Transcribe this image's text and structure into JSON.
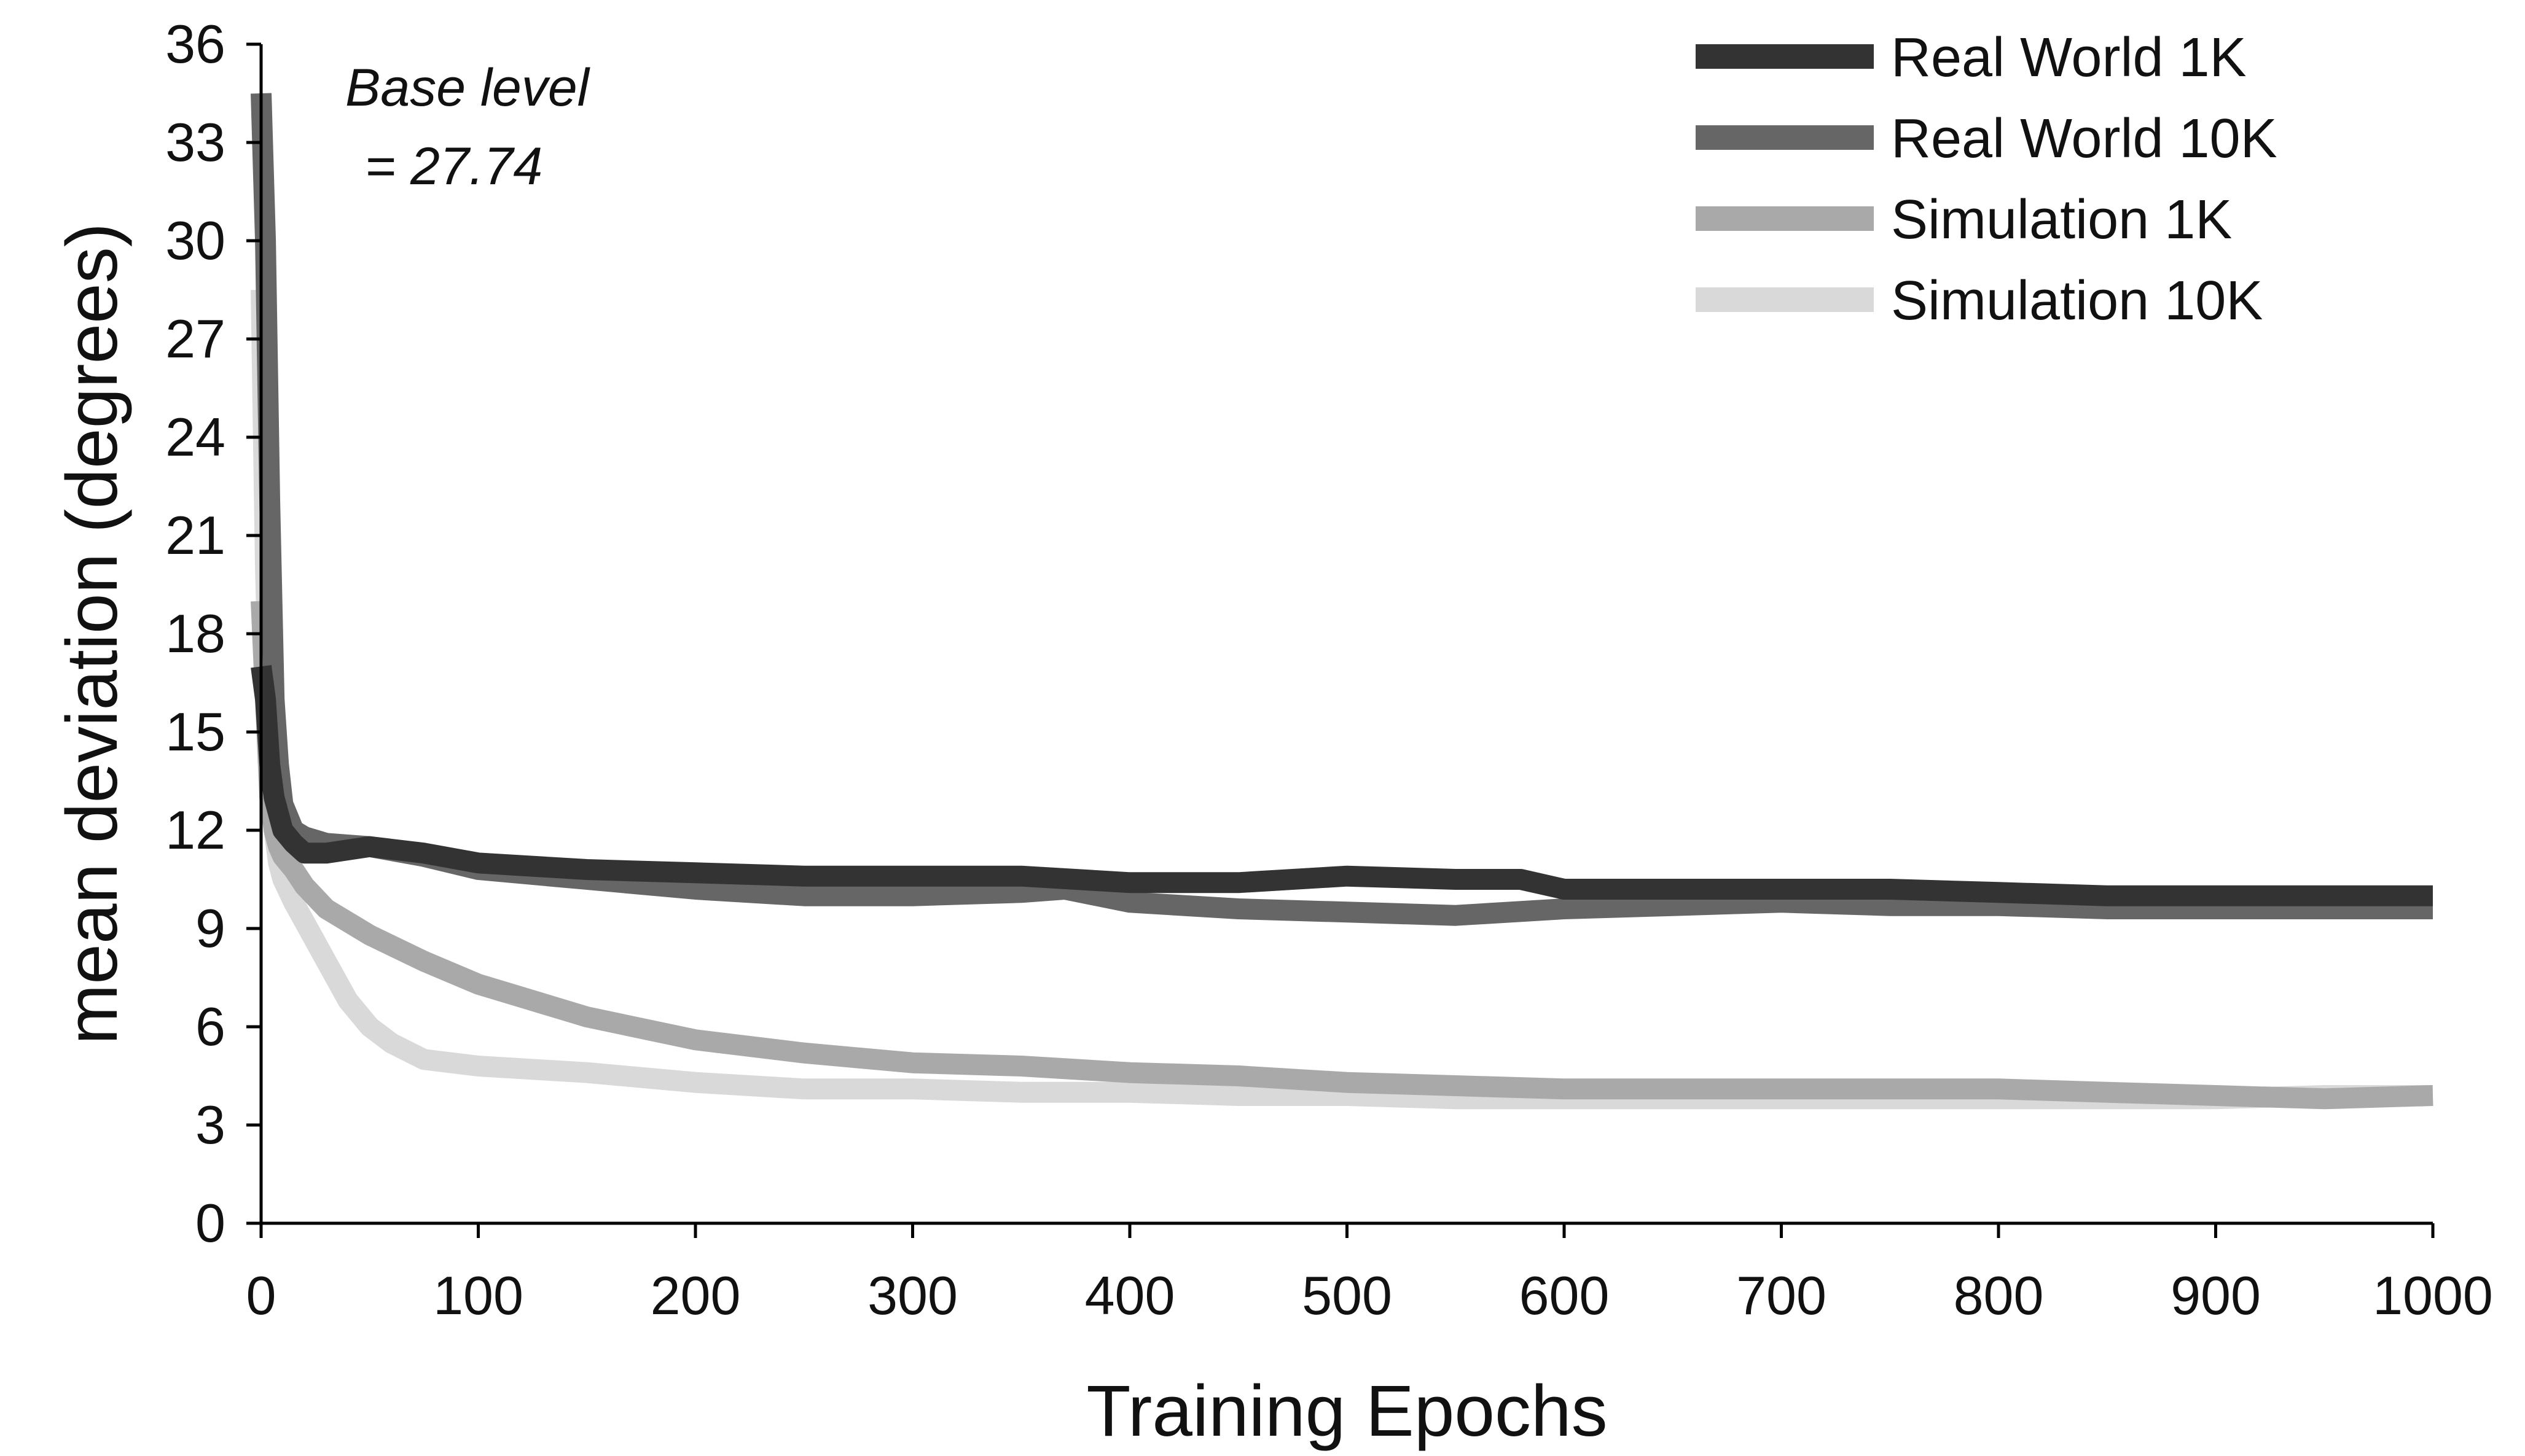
{
  "chart_data": {
    "type": "line",
    "title": "",
    "xlabel": "Training Epochs",
    "ylabel": "mean deviation (degrees)",
    "xlim": [
      0,
      1000
    ],
    "ylim": [
      0,
      36
    ],
    "xticks": [
      0,
      100,
      200,
      300,
      400,
      500,
      600,
      700,
      800,
      900,
      1000
    ],
    "yticks": [
      0,
      3,
      6,
      9,
      12,
      15,
      18,
      21,
      24,
      27,
      30,
      33,
      36
    ],
    "grid": false,
    "legend_position": "top-right",
    "annotation": [
      "Base level",
      " = 27.74"
    ],
    "series": [
      {
        "name": "Real World 1K",
        "color": "#333333",
        "x": [
          0,
          2,
          4,
          6,
          8,
          10,
          15,
          20,
          30,
          50,
          75,
          100,
          150,
          200,
          250,
          300,
          350,
          400,
          450,
          500,
          550,
          580,
          600,
          650,
          700,
          750,
          800,
          850,
          900,
          950,
          1000
        ],
        "y": [
          17.0,
          16.0,
          14.0,
          13.0,
          12.5,
          12.0,
          11.6,
          11.3,
          11.3,
          11.5,
          11.3,
          11.0,
          10.8,
          10.7,
          10.6,
          10.6,
          10.6,
          10.4,
          10.4,
          10.6,
          10.5,
          10.5,
          10.2,
          10.2,
          10.2,
          10.2,
          10.1,
          10.0,
          10.0,
          10.0,
          10.0
        ]
      },
      {
        "name": "Real World 10K",
        "color": "#666666",
        "x": [
          0,
          2,
          4,
          6,
          8,
          10,
          15,
          20,
          30,
          50,
          75,
          100,
          150,
          200,
          250,
          300,
          350,
          370,
          400,
          450,
          500,
          550,
          600,
          650,
          700,
          750,
          800,
          850,
          900,
          950,
          1000
        ],
        "y": [
          34.5,
          30.0,
          22.0,
          16.0,
          14.0,
          12.8,
          12.0,
          11.8,
          11.6,
          11.5,
          11.2,
          10.8,
          10.5,
          10.2,
          10.0,
          10.0,
          10.1,
          10.2,
          9.8,
          9.6,
          9.5,
          9.4,
          9.6,
          9.7,
          9.8,
          9.7,
          9.7,
          9.6,
          9.6,
          9.6,
          9.6
        ]
      },
      {
        "name": "Simulation 1K",
        "color": "#a9a9a9",
        "x": [
          0,
          2,
          4,
          6,
          8,
          10,
          15,
          20,
          30,
          50,
          75,
          100,
          150,
          200,
          250,
          300,
          350,
          400,
          450,
          500,
          550,
          600,
          650,
          700,
          750,
          800,
          850,
          900,
          950,
          1000
        ],
        "y": [
          19.0,
          16.0,
          13.0,
          12.0,
          11.5,
          11.2,
          10.8,
          10.3,
          9.6,
          8.8,
          8.0,
          7.3,
          6.3,
          5.6,
          5.2,
          4.9,
          4.8,
          4.6,
          4.5,
          4.3,
          4.2,
          4.1,
          4.1,
          4.1,
          4.1,
          4.1,
          4.0,
          3.9,
          3.8,
          3.9
        ]
      },
      {
        "name": "Simulation 10K",
        "color": "#d9d9d9",
        "x": [
          0,
          2,
          4,
          6,
          8,
          10,
          15,
          20,
          30,
          40,
          50,
          60,
          75,
          100,
          150,
          200,
          250,
          300,
          350,
          400,
          450,
          500,
          550,
          600,
          650,
          700,
          750,
          800,
          850,
          900,
          950,
          1000
        ],
        "y": [
          28.5,
          20.0,
          15.0,
          12.0,
          11.0,
          10.5,
          9.8,
          9.2,
          8.0,
          6.8,
          6.0,
          5.5,
          5.0,
          4.8,
          4.6,
          4.3,
          4.1,
          4.1,
          4.0,
          4.0,
          3.9,
          3.9,
          3.8,
          3.8,
          3.8,
          3.8,
          3.8,
          3.8,
          3.8,
          3.8,
          3.9,
          3.9
        ]
      }
    ]
  }
}
